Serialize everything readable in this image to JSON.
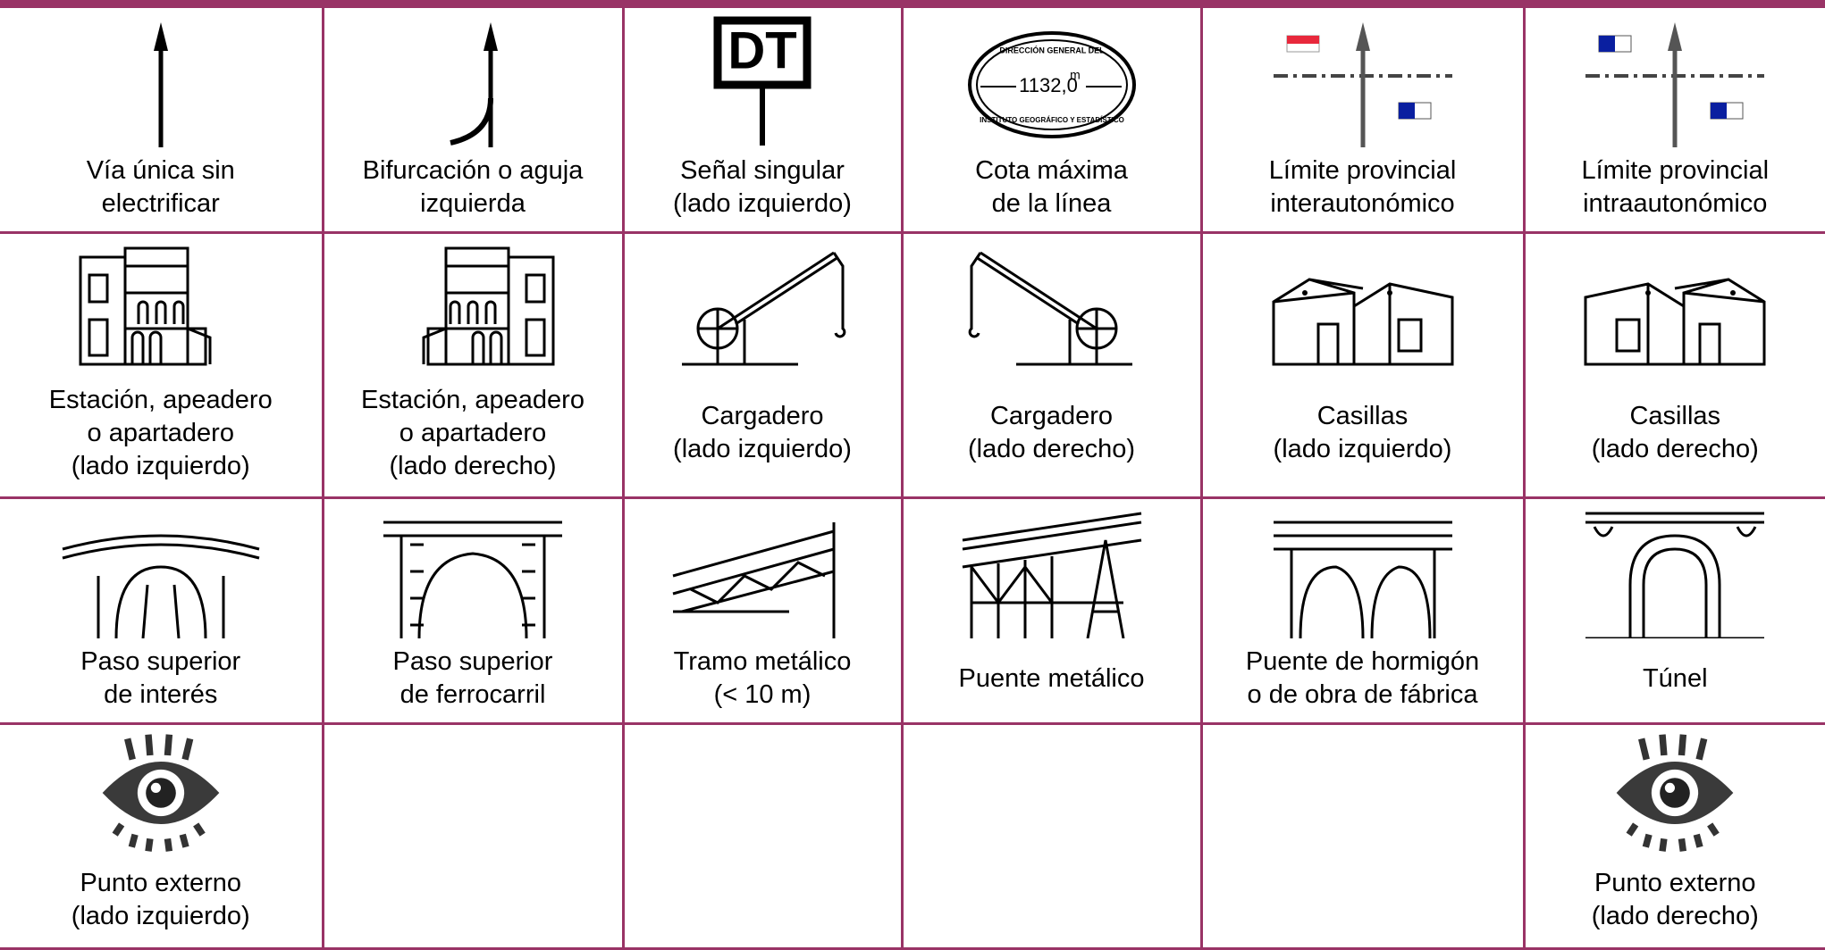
{
  "table": {
    "rows": [
      [
        {
          "lines": [
            "Vía única sin",
            "electrificar"
          ]
        },
        {
          "lines": [
            "Bifurcación o aguja",
            "izquierda"
          ]
        },
        {
          "lines": [
            "Señal singular",
            "(lado izquierdo)"
          ],
          "icon_texts": [
            "DT"
          ]
        },
        {
          "lines": [
            "Cota máxima",
            "de la línea"
          ],
          "icon_texts": [
            "DIRECCIÓN GENERAL DEL",
            "1132,0",
            "m",
            "INSTITUTO GEOGRÁFICO Y ESTADÍSTICO"
          ]
        },
        {
          "lines": [
            "Límite provincial",
            "interautonómico"
          ]
        },
        {
          "lines": [
            "Límite provincial",
            "intraautonómico"
          ]
        }
      ],
      [
        {
          "lines": [
            "Estación, apeadero",
            "o apartadero",
            "(lado izquierdo)"
          ]
        },
        {
          "lines": [
            "Estación, apeadero",
            "o apartadero",
            "(lado derecho)"
          ]
        },
        {
          "lines": [
            "Cargadero",
            "(lado izquierdo)"
          ]
        },
        {
          "lines": [
            "Cargadero",
            "(lado derecho)"
          ]
        },
        {
          "lines": [
            "Casillas",
            "(lado izquierdo)"
          ]
        },
        {
          "lines": [
            "Casillas",
            "(lado derecho)"
          ]
        }
      ],
      [
        {
          "lines": [
            "Paso superior",
            "de interés"
          ]
        },
        {
          "lines": [
            "Paso superior",
            "de ferrocarril"
          ]
        },
        {
          "lines": [
            "Tramo metálico",
            "(< 10 m)"
          ]
        },
        {
          "lines": [
            "Puente metálico"
          ]
        },
        {
          "lines": [
            "Puente de hormigón",
            "o de obra de fábrica"
          ]
        },
        {
          "lines": [
            "Túnel"
          ]
        }
      ],
      [
        {
          "lines": [
            "Punto externo",
            "(lado izquierdo)"
          ]
        },
        null,
        null,
        null,
        null,
        {
          "lines": [
            "Punto externo",
            "(lado derecho)"
          ]
        }
      ]
    ]
  }
}
